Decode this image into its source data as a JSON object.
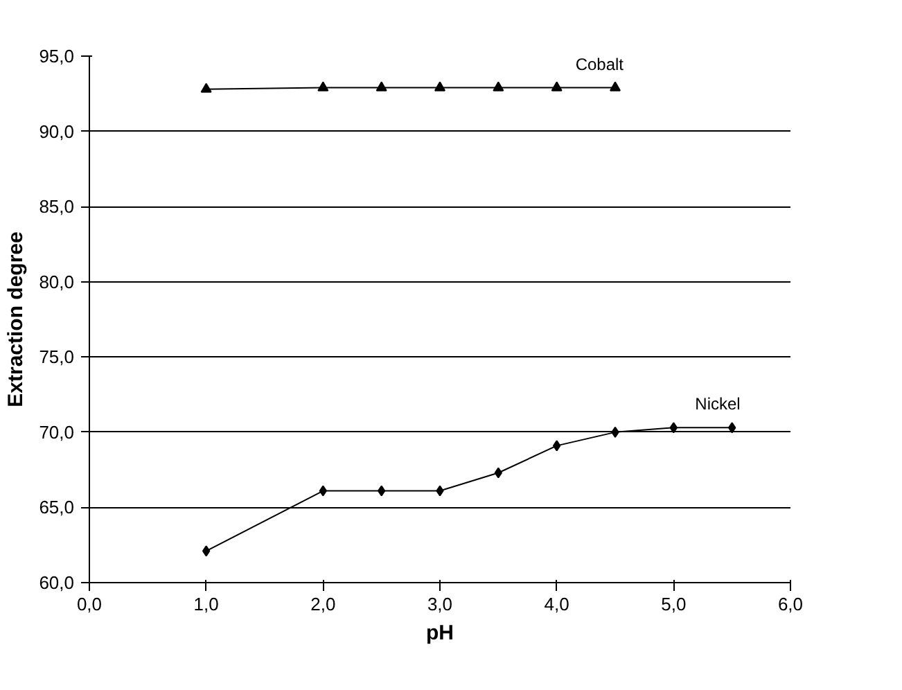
{
  "chart_data": {
    "type": "line",
    "xlabel": "pH",
    "ylabel": "Extraction degree",
    "series": [
      {
        "name": "Cobalt",
        "color": "#000000",
        "marker": "triangle",
        "x": [
          1.0,
          2.0,
          2.5,
          3.0,
          3.5,
          4.0,
          4.5
        ],
        "values": [
          92.8,
          92.9,
          92.9,
          92.9,
          92.9,
          92.9,
          92.9
        ]
      },
      {
        "name": "Nickel",
        "color": "#000000",
        "marker": "diamond",
        "x": [
          1.0,
          2.0,
          2.5,
          3.0,
          3.5,
          4.0,
          4.5,
          5.0,
          5.5
        ],
        "values": [
          62.1,
          66.1,
          66.1,
          66.1,
          67.3,
          69.1,
          70.0,
          70.3,
          70.3
        ]
      }
    ],
    "xlim": [
      0,
      6
    ],
    "ylim": [
      60,
      95
    ],
    "xticks": [
      {
        "value": 0,
        "label": "0,0"
      },
      {
        "value": 1,
        "label": "1,0"
      },
      {
        "value": 2,
        "label": "2,0"
      },
      {
        "value": 3,
        "label": "3,0"
      },
      {
        "value": 4,
        "label": "4,0"
      },
      {
        "value": 5,
        "label": "5,0"
      },
      {
        "value": 6,
        "label": "6,0"
      }
    ],
    "yticks": [
      {
        "value": 60,
        "label": "60,0"
      },
      {
        "value": 65,
        "label": "65,0"
      },
      {
        "value": 70,
        "label": "70,0"
      },
      {
        "value": 75,
        "label": "75,0"
      },
      {
        "value": 80,
        "label": "80,0"
      },
      {
        "value": 85,
        "label": "85,0"
      },
      {
        "value": 90,
        "label": "90,0"
      },
      {
        "value": 95,
        "label": "95,0"
      }
    ],
    "grid": "y",
    "line_style": "solid"
  }
}
